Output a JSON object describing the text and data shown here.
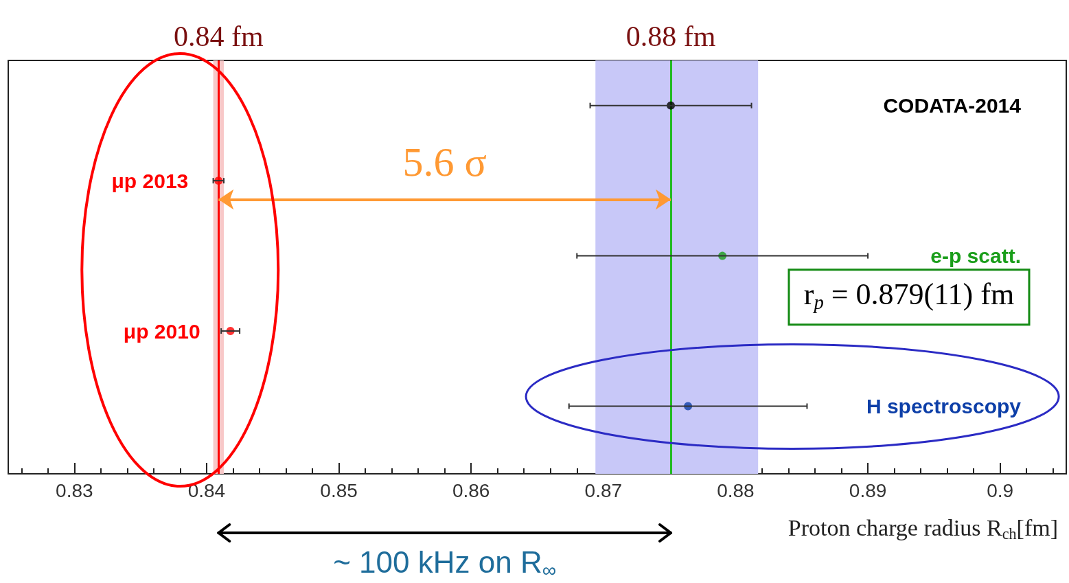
{
  "chart_data": {
    "type": "scatter",
    "orientation": "horizontal",
    "categories": [
      "CODATA-2014",
      "μp 2013",
      "e-p scatt.",
      "μp 2010",
      "H spectroscopy"
    ],
    "values": [
      0.8751,
      0.8409,
      0.879,
      0.8418,
      0.8764
    ],
    "errors": [
      0.0061,
      0.0004,
      0.011,
      0.0007,
      0.009
    ],
    "colors": [
      "#000000",
      "#ff0000",
      "#1a9e1a",
      "#ff0000",
      "#0d3fa8"
    ],
    "xlabel": "Proton charge radius R$_{ch}$[fm]",
    "xlim": [
      0.825,
      0.905
    ],
    "xticks": [
      {
        "value": 0.826,
        "label": null
      },
      {
        "value": 0.828,
        "label": null
      },
      0.83,
      {
        "value": 0.832,
        "label": null
      },
      {
        "value": 0.834,
        "label": null
      },
      {
        "value": 0.836,
        "label": null
      },
      {
        "value": 0.838,
        "label": null
      },
      0.84,
      {
        "value": 0.842,
        "label": null
      },
      {
        "value": 0.844,
        "label": null
      },
      {
        "value": 0.846,
        "label": null
      },
      {
        "value": 0.848,
        "label": null
      },
      0.85,
      {
        "value": 0.852,
        "label": null
      },
      {
        "value": 0.854,
        "label": null
      },
      {
        "value": 0.856,
        "label": null
      },
      {
        "value": 0.858,
        "label": null
      },
      0.86,
      {
        "value": 0.862,
        "label": null
      },
      {
        "value": 0.864,
        "label": null
      },
      {
        "value": 0.866,
        "label": null
      },
      {
        "value": 0.868,
        "label": null
      },
      0.87,
      {
        "value": 0.872,
        "label": null
      },
      {
        "value": 0.874,
        "label": null
      },
      {
        "value": 0.876,
        "label": null
      },
      {
        "value": 0.878,
        "label": null
      },
      0.88,
      {
        "value": 0.882,
        "label": null
      },
      {
        "value": 0.884,
        "label": null
      },
      {
        "value": 0.886,
        "label": null
      },
      {
        "value": 0.888,
        "label": null
      },
      0.89,
      {
        "value": 0.892,
        "label": null
      },
      {
        "value": 0.894,
        "label": null
      },
      {
        "value": 0.896,
        "label": null
      },
      {
        "value": 0.898,
        "label": null
      },
      0.9,
      {
        "value": 0.902,
        "label": null
      },
      {
        "value": 0.904,
        "label": null
      }
    ],
    "ref_lines": [
      {
        "axis": "x",
        "value": 0.8409,
        "label": "0.84 fm",
        "color": "#ff0000"
      },
      {
        "axis": "x",
        "value": 0.8751,
        "label": "0.88 fm",
        "color": "#22bb22"
      }
    ],
    "bands": [
      {
        "axis": "x",
        "from": 0.8694,
        "to": 0.8817,
        "color": "#c8c8f8"
      },
      {
        "axis": "x",
        "from": 0.8405,
        "to": 0.8413,
        "color": "#f8c8c8"
      }
    ],
    "annotations": [
      "5.6 σ",
      "r$_{p}$ = 0.879(11) fm",
      "~ 100 kHz on R$_{∞}$"
    ]
  }
}
